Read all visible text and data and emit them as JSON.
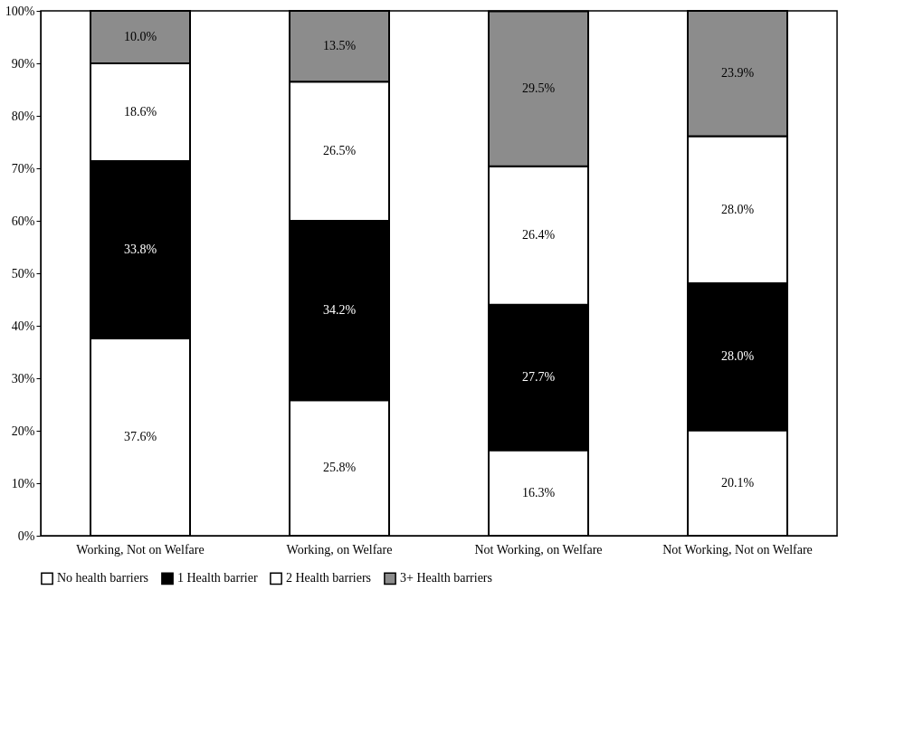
{
  "chart_data": {
    "type": "bar",
    "stacked": true,
    "categories": [
      "Working, Not on Welfare",
      "Working, on Welfare",
      "Not Working, on Welfare",
      "Not Working, Not on Welfare"
    ],
    "series": [
      {
        "name": "No health barriers",
        "color": "#ffffff",
        "values": [
          37.6,
          25.8,
          16.3,
          20.1
        ],
        "value_labels": [
          "37.6%",
          "25.8%",
          "16.3%",
          "20.1%"
        ]
      },
      {
        "name": "1 Health barrier",
        "color": "#000000",
        "values": [
          33.8,
          34.2,
          27.7,
          28.0
        ],
        "value_labels": [
          "33.8%",
          "34.2%",
          "27.7%",
          "28.0%"
        ]
      },
      {
        "name": "2 Health barriers",
        "color": "#ffffff",
        "values": [
          18.6,
          26.5,
          26.4,
          28.0
        ],
        "value_labels": [
          "18.6%",
          "26.5%",
          "26.4%",
          "28.0%"
        ]
      },
      {
        "name": "3+ Health barriers",
        "color": "#8c8c8c",
        "values": [
          10.0,
          13.5,
          29.5,
          23.9
        ],
        "value_labels": [
          "10.0%",
          "13.5%",
          "29.5%",
          "23.9%"
        ]
      }
    ],
    "ylim": [
      0,
      100
    ],
    "yticks": [
      {
        "value": 0,
        "label": "0%"
      },
      {
        "value": 10,
        "label": "10%"
      },
      {
        "value": 20,
        "label": "20%"
      },
      {
        "value": 30,
        "label": "30%"
      },
      {
        "value": 40,
        "label": "40%"
      },
      {
        "value": 50,
        "label": "50%"
      },
      {
        "value": 60,
        "label": "60%"
      },
      {
        "value": 70,
        "label": "70%"
      },
      {
        "value": 80,
        "label": "80%"
      },
      {
        "value": 90,
        "label": "90%"
      },
      {
        "value": 100,
        "label": "100%"
      }
    ],
    "grid": false,
    "legend": "bottom"
  }
}
